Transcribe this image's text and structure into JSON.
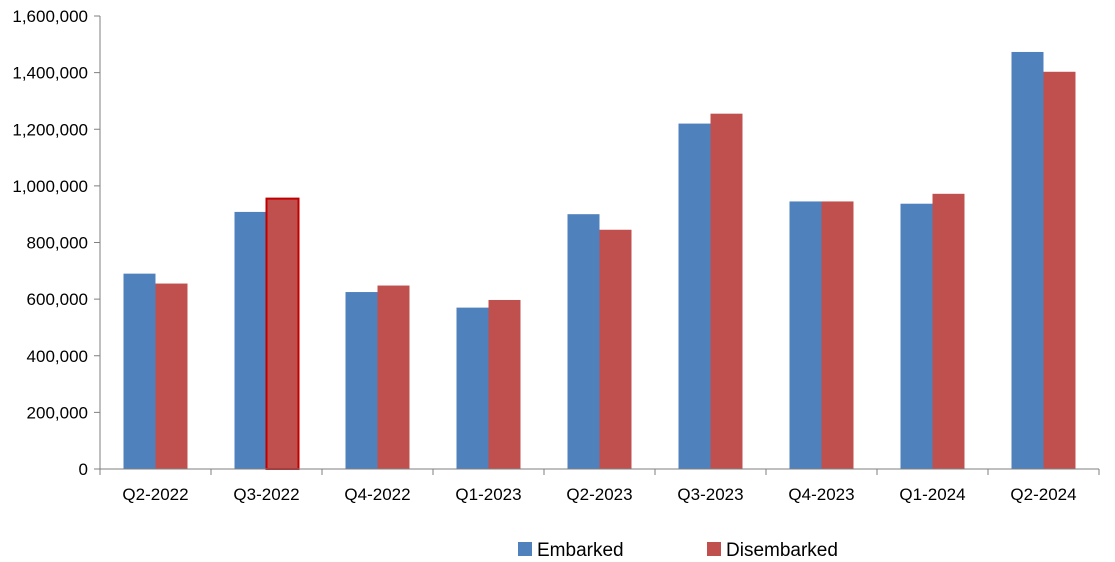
{
  "chart_data": {
    "type": "bar",
    "title": "",
    "xlabel": "",
    "ylabel": "",
    "categories": [
      "Q2-2022",
      "Q3-2022",
      "Q4-2022",
      "Q1-2023",
      "Q2-2023",
      "Q3-2023",
      "Q4-2023",
      "Q1-2024",
      "Q2-2024"
    ],
    "series": [
      {
        "name": "Embarked",
        "color": "#4F81BD",
        "values": [
          690000,
          908000,
          625000,
          570000,
          900000,
          1220000,
          945000,
          937000,
          1473000
        ]
      },
      {
        "name": "Disembarked",
        "color": "#C0504D",
        "values": [
          655000,
          955000,
          648000,
          597000,
          845000,
          1255000,
          945000,
          972000,
          1403000
        ]
      }
    ],
    "ylim": [
      0,
      1600000
    ],
    "yticks": [
      "0",
      "200,000",
      "400,000",
      "600,000",
      "800,000",
      "1,000,000",
      "1,200,000",
      "1,400,000",
      "1,600,000"
    ],
    "grid": false,
    "legend_position": "bottom",
    "highlighted_bar": {
      "series": "Disembarked",
      "category": "Q3-2022",
      "border_color": "#C00000"
    }
  }
}
